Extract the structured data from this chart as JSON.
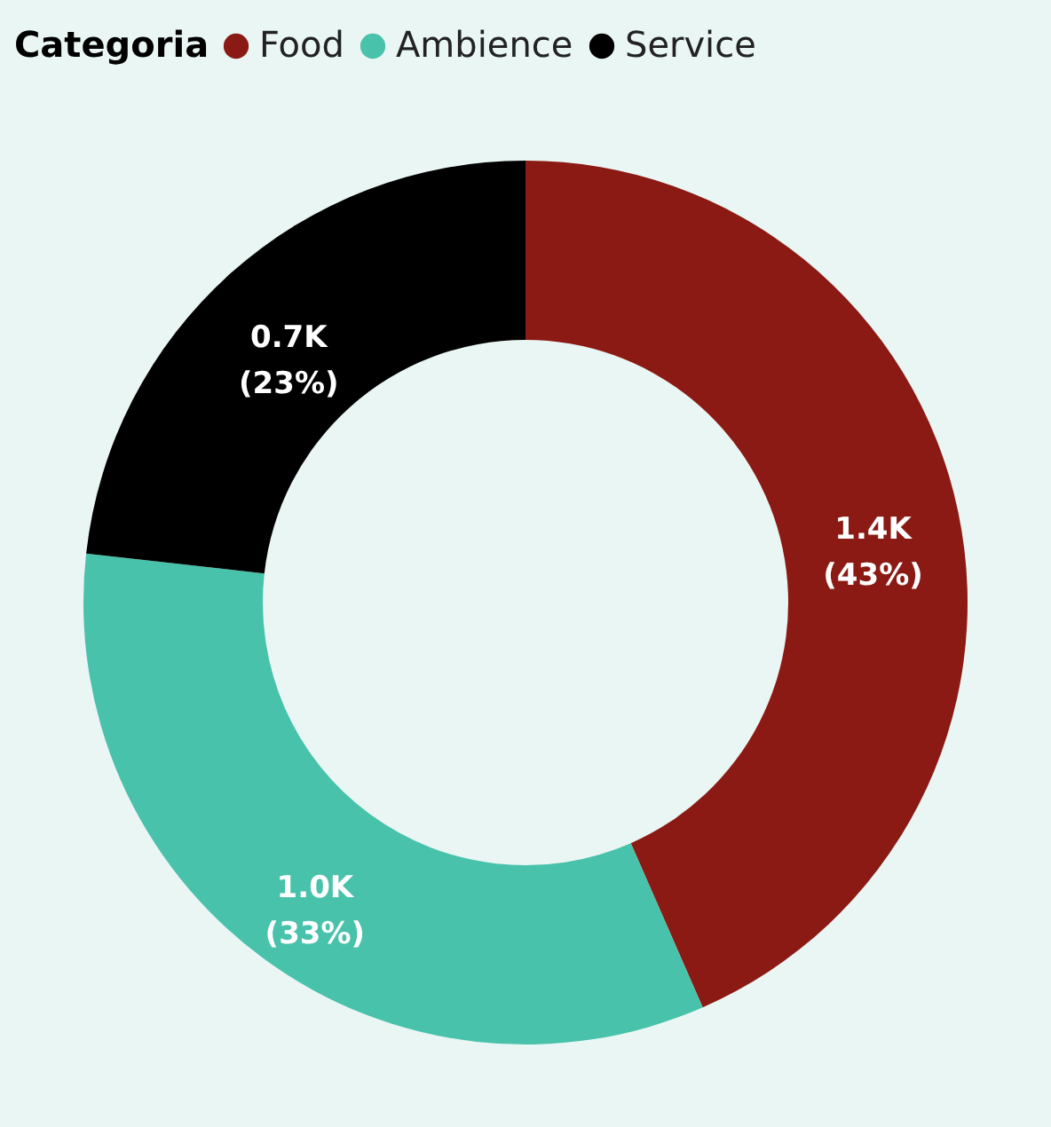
{
  "chart_data": {
    "type": "donut",
    "legend_title": "Categoria",
    "legend": "top",
    "categories": [
      "Food",
      "Ambience",
      "Service"
    ],
    "values": [
      43,
      33,
      23
    ],
    "colors": [
      "#8b1a14",
      "#48c2ab",
      "#000000"
    ],
    "value_labels": [
      "1.4K\n(43%)",
      "1.0K\n(33%)",
      "0.7K\n(23%)"
    ]
  }
}
